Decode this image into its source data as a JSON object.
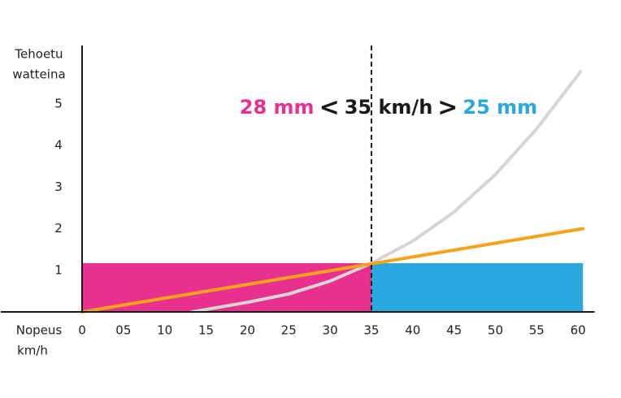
{
  "chart_data": {
    "type": "line",
    "y_label": [
      "Tehoetu",
      "watteina"
    ],
    "x_label": [
      "Nopeus",
      "km/h"
    ],
    "annotation": [
      {
        "text": "28 mm",
        "color": "#e8308f"
      },
      {
        "text": "<",
        "color": "#1a1a1a"
      },
      {
        "text": "35 km/h",
        "color": "#1a1a1a"
      },
      {
        "text": ">",
        "color": "#1a1a1a"
      },
      {
        "text": "25 mm",
        "color": "#29a8e0"
      }
    ],
    "xlim": [
      0,
      62
    ],
    "ylim": [
      0,
      6.4
    ],
    "xticks": [
      0,
      {
        "value": 5,
        "label": "05"
      },
      10,
      15,
      20,
      25,
      30,
      35,
      40,
      45,
      50,
      55,
      60
    ],
    "yticks": [
      1,
      2,
      3,
      4,
      5
    ],
    "vline": 35,
    "regions": [
      {
        "x": [
          0,
          35
        ],
        "value": 1.17,
        "color": "#e8308f"
      },
      {
        "x": [
          35,
          60.6
        ],
        "value": 1.17,
        "color": "#29a8e0"
      }
    ],
    "series": [
      {
        "color": "#f7a21b",
        "x": [
          0,
          60.6
        ],
        "values": [
          0,
          2.0
        ]
      },
      {
        "color": "#d5d5d5",
        "x": [
          13.3,
          20,
          25,
          30,
          35,
          40,
          45,
          50,
          55,
          60.3
        ],
        "values": [
          0,
          0.23,
          0.43,
          0.74,
          1.17,
          1.7,
          2.4,
          3.3,
          4.4,
          5.77
        ]
      }
    ]
  }
}
